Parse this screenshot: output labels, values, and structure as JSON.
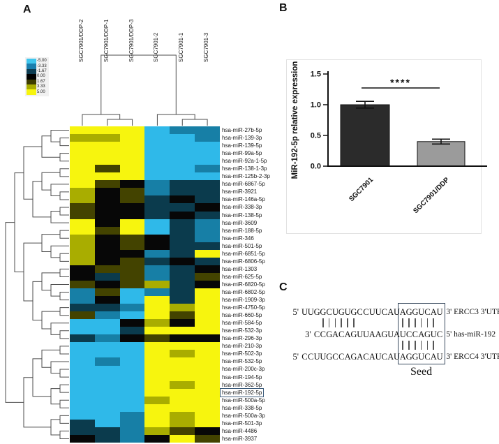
{
  "panels": {
    "a": "A",
    "b": "B",
    "c": "C"
  },
  "chart_data": [
    {
      "type": "heatmap",
      "title": "",
      "columns": [
        "SGC7901/DDP-2",
        "SGC7901/DDP-1",
        "SGC7901/DDP-3",
        "SGC7901-2",
        "SGC7901-1",
        "SGC7901-3"
      ],
      "legend": {
        "values": [
          "-5.00",
          "-3.33",
          "-1.67",
          "0.00",
          "1.67",
          "3.33",
          "5.00"
        ],
        "colors": [
          "#3fc6ee",
          "#1a7fae",
          "#0d3d52",
          "#000000",
          "#3d3d00",
          "#a9ad00",
          "#f7f50e"
        ]
      },
      "palette": {
        "Y": "#f7f50e",
        "G": "#a9ad00",
        "D": "#434300",
        "K": "#070707",
        "T": "#0b3b4d",
        "B": "#177fa6",
        "C": "#2fb9e9"
      },
      "palette_values": {
        "Y": 5,
        "G": 3.3,
        "D": 1.7,
        "K": 0,
        "T": -1.7,
        "B": -3.3,
        "C": -5
      },
      "highlighted_row": "hsa-miR-192-5p",
      "col_dendrogram": [
        [
          0,
          [
            1,
            2
          ]
        ],
        [
          3,
          [
            4,
            5
          ]
        ]
      ],
      "row_dendrogram": [
        [
          [
            [
              [
                0,
                [
                  1,
                  2
                ]
              ],
              [
                3,
                4
              ]
            ],
            [
              [
                [
                  5,
                  6
                ],
                [
                  7,
                  [
                    8,
                    9
                  ]
                ]
              ],
              [
                [
                  10,
                  11
                ],
                12
              ]
            ]
          ],
          [
            [
              [
                13,
                14
              ],
              [
                15,
                [
                  16,
                  17
                ]
              ]
            ],
            [
              [
                [
                  18,
                  19
                ],
                [
                  20,
                  [
                    21,
                    22
                  ]
                ]
              ],
              [
                [
                  23,
                  24
                ],
                [
                  25,
                  [
                    26,
                    27
                  ]
                ]
              ]
            ]
          ]
        ],
        [
          [
            [
              [
                28,
                29
              ],
              [
                30,
                [
                  31,
                  32
                ]
              ]
            ],
            [
              [
                33,
                34
              ],
              [
                35,
                36
              ]
            ]
          ],
          [
            [
              37,
              38
            ],
            [
              39,
              40
            ]
          ]
        ]
      ],
      "rows": [
        {
          "label": "hsa-miR-27b-5p",
          "cells": "YYYCBB"
        },
        {
          "label": "hsa-miR-139-3p",
          "cells": "GGYCCB"
        },
        {
          "label": "hsa-miR-139-5p",
          "cells": "YYYCCC"
        },
        {
          "label": "hsa-miR-99a-5p",
          "cells": "YYYCCC"
        },
        {
          "label": "hsa-miR-92a-1-5p",
          "cells": "YYYCCC"
        },
        {
          "label": "hsa-miR-138-1-3p",
          "cells": "YDYCCB"
        },
        {
          "label": "hsa-miR-125b-2-3p",
          "cells": "YYYCCC"
        },
        {
          "label": "hsa-miR-6867-5p",
          "cells": "YDKBTT"
        },
        {
          "label": "hsa-miR-3921",
          "cells": "GKDBTT"
        },
        {
          "label": "hsa-miR-146a-5p",
          "cells": "GKDTKT"
        },
        {
          "label": "hsa-miR-338-3p",
          "cells": "DKKTTK"
        },
        {
          "label": "hsa-miR-138-5p",
          "cells": "DKKTKT"
        },
        {
          "label": "hsa-miR-3609",
          "cells": "YKYCTB"
        },
        {
          "label": "hsa-miR-188-5p",
          "cells": "YDYCTB"
        },
        {
          "label": "hsa-miR-346",
          "cells": "GKDKTB"
        },
        {
          "label": "hsa-miR-501-5p",
          "cells": "GKDKTT"
        },
        {
          "label": "hsa-miR-6851-5p",
          "cells": "GKKBTY"
        },
        {
          "label": "hsa-miR-6806-5p",
          "cells": "GKDTKT"
        },
        {
          "label": "hsa-miR-1303",
          "cells": "KDDBTK"
        },
        {
          "label": "hsa-miR-625-5p",
          "cells": "KTDBTD"
        },
        {
          "label": "hsa-miR-6820-5p",
          "cells": "DKDGTK"
        },
        {
          "label": "hsa-miR-6802-5p",
          "cells": "BDCBTY"
        },
        {
          "label": "hsa-miR-1909-3p",
          "cells": "BKCYTY"
        },
        {
          "label": "hsa-miR-4750-5p",
          "cells": "TTBYGY"
        },
        {
          "label": "hsa-miR-660-5p",
          "cells": "DBCYDY"
        },
        {
          "label": "hsa-miR-584-5p",
          "cells": "CCKGKY"
        },
        {
          "label": "hsa-miR-532-3p",
          "cells": "CCTYYY"
        },
        {
          "label": "hsa-miR-296-3p",
          "cells": "TBKDKK"
        },
        {
          "label": "hsa-miR-210-3p",
          "cells": "CCCYYY"
        },
        {
          "label": "hsa-miR-502-3p",
          "cells": "CCCYGY"
        },
        {
          "label": "hsa-miR-532-5p",
          "cells": "CBCYYY"
        },
        {
          "label": "hsa-miR-200c-3p",
          "cells": "CCCYYY"
        },
        {
          "label": "hsa-miR-194-5p",
          "cells": "CCCYYY"
        },
        {
          "label": "hsa-miR-362-5p",
          "cells": "CCCYGY"
        },
        {
          "label": "hsa-miR-192-5p",
          "cells": "CCCYYY"
        },
        {
          "label": "hsa-miR-500a-5p",
          "cells": "CCCGYY"
        },
        {
          "label": "hsa-miR-338-5p",
          "cells": "CCCYYY"
        },
        {
          "label": "hsa-miR-500a-3p",
          "cells": "CCBYGY"
        },
        {
          "label": "hsa-miR-501-3p",
          "cells": "TCBYGY"
        },
        {
          "label": "hsa-miR-4486",
          "cells": "TTBGDK"
        },
        {
          "label": "hsa-miR-3937",
          "cells": "KTBKYD"
        }
      ]
    },
    {
      "type": "bar",
      "title": "",
      "xlabel": "",
      "ylabel": "MiR-192-5p relative expression",
      "categories": [
        "SGC7901",
        "SGC7901/DDP"
      ],
      "values": [
        1.0,
        0.4
      ],
      "errors": [
        0.055,
        0.04
      ],
      "bar_colors": [
        "#2b2b2b",
        "#9b9b9b"
      ],
      "ylim": [
        0,
        1.5
      ],
      "yticks": [
        "0.0",
        "0.5",
        "1.0",
        "1.5"
      ],
      "significance": "****"
    }
  ],
  "alignment": {
    "lines": [
      {
        "prefix": "5'",
        "sequence": "UUGGCUGUGCCUUCAUAGGUCAU",
        "suffix": "3' ERCC3 3'UTR",
        "offset": 0
      },
      {
        "prefix": "3'",
        "sequence": "CCGACAGUUAAGUAUCCAGUC",
        "suffix": "5' has-miR-192",
        "offset": 2
      },
      {
        "prefix": "5'",
        "sequence": "CCUUGCCAGACAUCAUAGGUCAU",
        "suffix": "3' ERCC4 3'UTR",
        "offset": 0
      }
    ],
    "pipes": [
      {
        "columns": [
          3,
          4,
          5,
          6,
          7,
          8,
          16,
          17,
          18,
          19,
          20,
          21
        ]
      },
      {
        "columns": [
          16,
          17,
          18,
          19,
          20,
          21
        ]
      }
    ],
    "seed_box": {
      "start_col": 16,
      "num_cols": 7
    },
    "seed_label": "Seed"
  }
}
